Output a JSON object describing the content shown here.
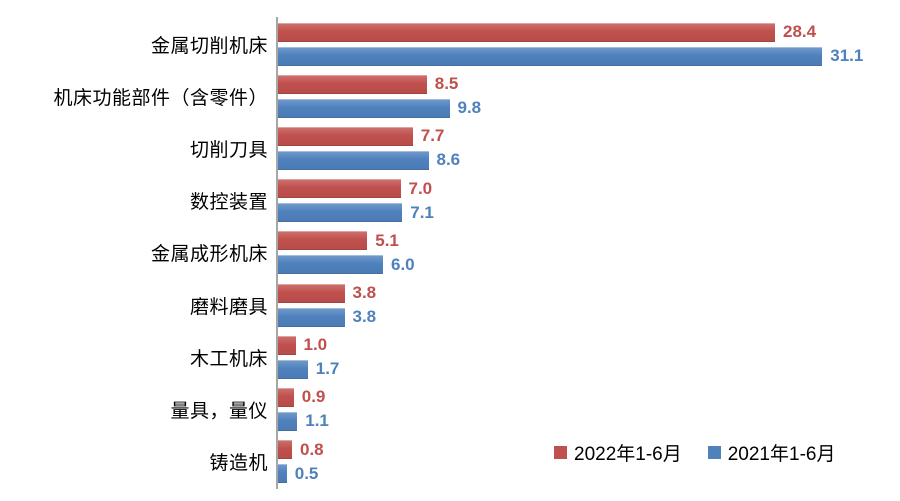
{
  "chart_data": {
    "type": "bar",
    "orientation": "horizontal",
    "title": "",
    "xlabel": "",
    "ylabel": "",
    "xlim": [
      0,
      32
    ],
    "grid": false,
    "legend_position": "bottom-right",
    "value_labels": true,
    "value_label_format": "one-decimal",
    "axis_line_color": "#a6a6a6",
    "category_label_color": "#000000",
    "categories": [
      "金属切削机床",
      "机床功能部件（含零件）",
      "切削刀具",
      "数控装置",
      "金属成形机床",
      "磨料磨具",
      "木工机床",
      "量具，量仪",
      "铸造机"
    ],
    "series": [
      {
        "name": "2022年1-6月",
        "color": "#C0504D",
        "values": [
          28.4,
          8.5,
          7.7,
          7.0,
          5.1,
          3.8,
          1.0,
          0.9,
          0.8
        ]
      },
      {
        "name": "2021年1-6月",
        "color": "#4F81BD",
        "values": [
          31.1,
          9.8,
          8.6,
          7.1,
          6.0,
          3.8,
          1.7,
          1.1,
          0.5
        ]
      }
    ]
  }
}
